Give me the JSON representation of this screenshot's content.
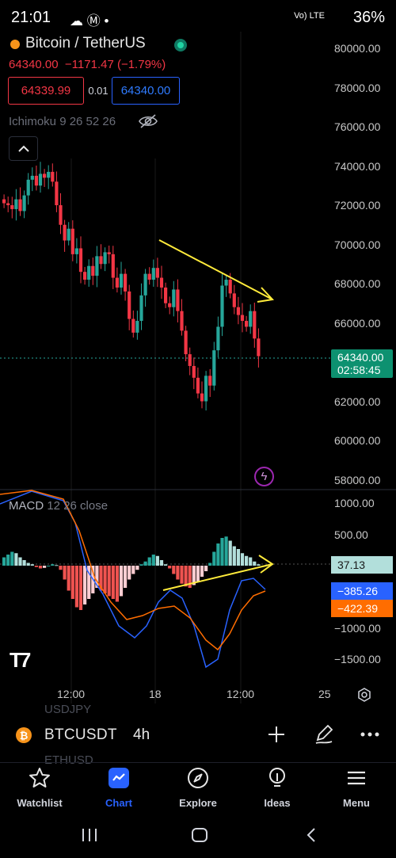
{
  "status_bar": {
    "time": "21:01",
    "network": "Vo) LTE",
    "battery": "36%"
  },
  "header": {
    "title": "Bitcoin / TetherUS",
    "price": "64340.00",
    "change": "−1171.47 (−1.79%)",
    "sell_price": "64339.99",
    "spread": "0.01",
    "buy_price": "64340.00",
    "indicator": "Ichimoku 9 26 52 26"
  },
  "chart": {
    "y_labels": [
      "80000.00",
      "78000.00",
      "76000.00",
      "74000.00",
      "72000.00",
      "70000.00",
      "68000.00",
      "66000.00",
      "64000.00",
      "62000.00",
      "60000.00",
      "58000.00"
    ],
    "last_price": "64340.00",
    "countdown": "02:58:45",
    "macd_label": "MACD",
    "macd_params": "12 26 close",
    "macd_y_labels": [
      "1000.00",
      "500.00",
      "−1000.00",
      "−1500.00"
    ],
    "macd_hist_value": "37.13",
    "macd_line_value": "−385.26",
    "macd_signal_value": "−422.39",
    "x_labels": [
      "12:00",
      "18",
      "12:00",
      "25"
    ],
    "colors": {
      "up": "#26a69a",
      "down": "#f23645",
      "macd_line": "#2962ff",
      "signal_line": "#ff6d00",
      "annotation": "#ffeb3b"
    }
  },
  "watchlist_ghost": [
    "USDJPY",
    "ETHUSD"
  ],
  "toolbar": {
    "symbol": "BTCUSDT",
    "interval": "4h"
  },
  "nav": {
    "items": [
      {
        "label": "Watchlist",
        "icon": "star-icon"
      },
      {
        "label": "Chart",
        "icon": "chart-icon"
      },
      {
        "label": "Explore",
        "icon": "compass-icon"
      },
      {
        "label": "Ideas",
        "icon": "lightbulb-icon"
      },
      {
        "label": "Menu",
        "icon": "hamburger-icon"
      }
    ]
  }
}
